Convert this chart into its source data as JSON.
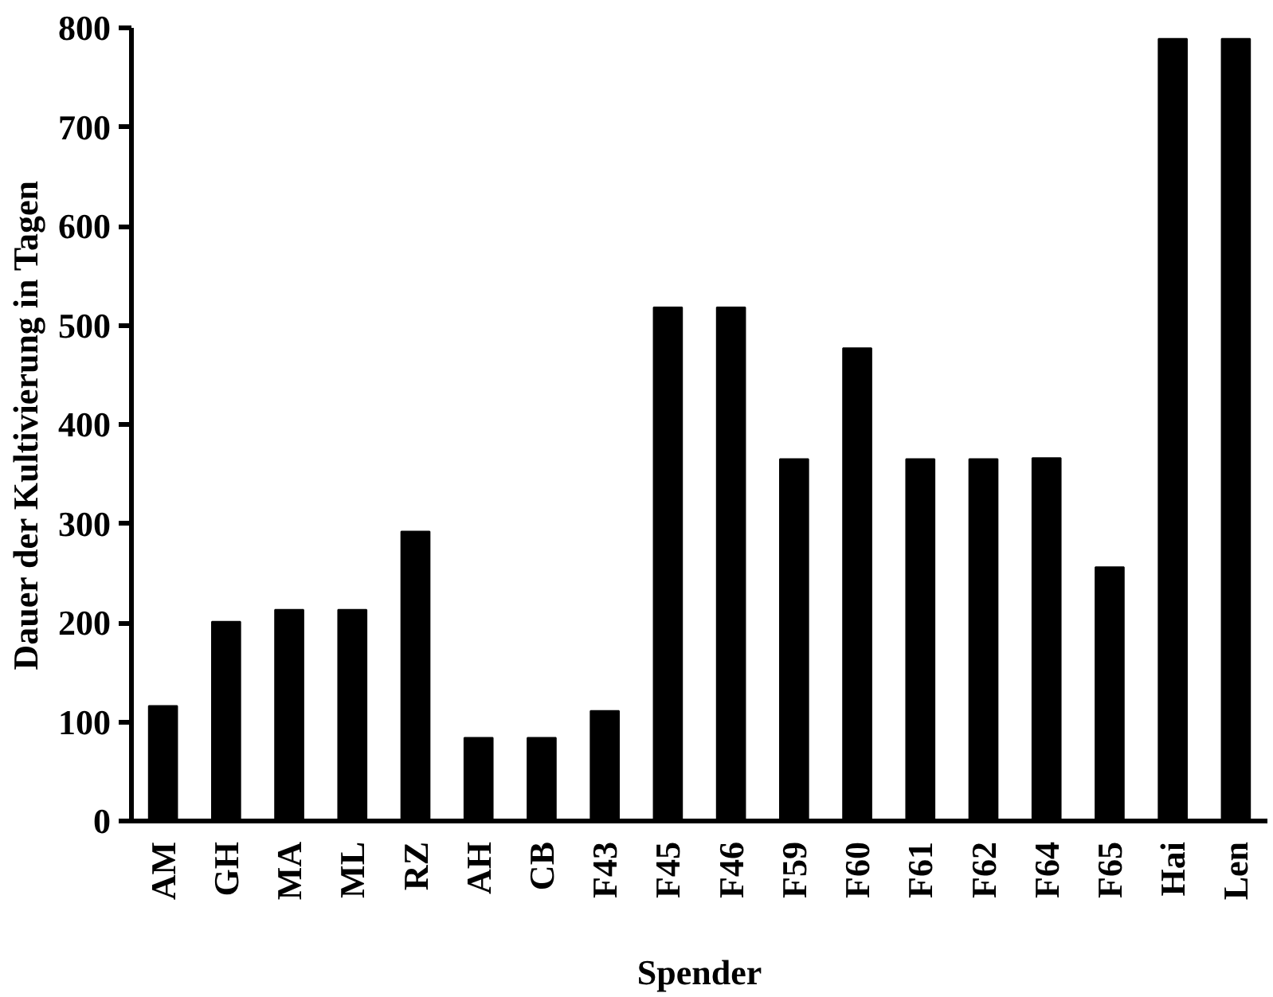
{
  "chart_data": {
    "type": "bar",
    "xlabel": "Spender",
    "ylabel": "Dauer der Kultivierung in Tagen",
    "categories": [
      "AM",
      "GH",
      "MA",
      "ML",
      "RZ",
      "AH",
      "CB",
      "F43",
      "F45",
      "F46",
      "F59",
      "F60",
      "F61",
      "F62",
      "F64",
      "F65",
      "Hai",
      "Len"
    ],
    "values": [
      116,
      201,
      213,
      213,
      292,
      84,
      84,
      111,
      518,
      518,
      365,
      477,
      365,
      365,
      366,
      256,
      789,
      789
    ],
    "color": "#000000",
    "ylim": [
      0,
      800
    ],
    "yticks": [
      0,
      100,
      200,
      300,
      400,
      500,
      600,
      700,
      800
    ],
    "grid": false
  }
}
